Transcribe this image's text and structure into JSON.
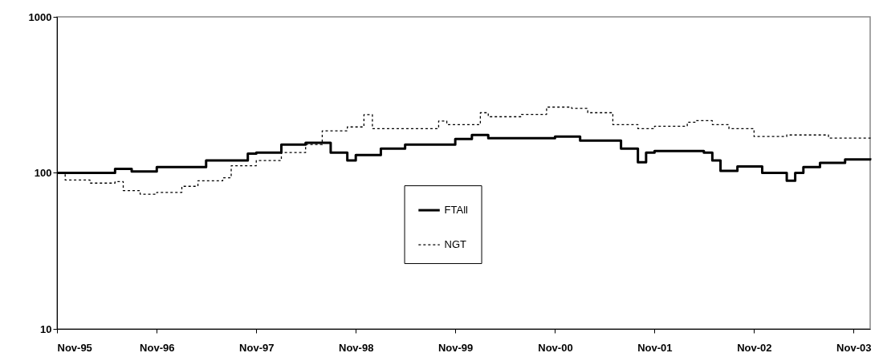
{
  "chart_data": {
    "type": "step",
    "log": true,
    "grid": false,
    "legend": "center",
    "xlim": [
      "1995-11",
      "2004-01"
    ],
    "ylim": [
      10,
      1000
    ],
    "yticks": [
      10,
      100,
      1000
    ],
    "xticks": [
      {
        "value": "1995-11",
        "label": "Nov-95"
      },
      {
        "value": "1996-11",
        "label": "Nov-96"
      },
      {
        "value": "1997-11",
        "label": "Nov-97"
      },
      {
        "value": "1998-11",
        "label": "Nov-98"
      },
      {
        "value": "1999-11",
        "label": "Nov-99"
      },
      {
        "value": "2000-11",
        "label": "Nov-00"
      },
      {
        "value": "2001-11",
        "label": "Nov-01"
      },
      {
        "value": "2002-11",
        "label": "Nov-02"
      },
      {
        "value": "2003-11",
        "label": "Nov-03"
      }
    ],
    "series": [
      {
        "name": "FTAll",
        "color": "#000000",
        "line_style": "solid",
        "x": [
          "1995-11",
          "1996-06",
          "1996-08",
          "1996-11",
          "1997-05",
          "1997-10",
          "1997-11",
          "1998-02",
          "1998-05",
          "1998-08",
          "1998-10",
          "1998-11",
          "1999-02",
          "1999-05",
          "1999-11",
          "2000-01",
          "2000-03",
          "2000-11",
          "2001-02",
          "2001-07",
          "2001-09",
          "2001-10",
          "2001-11",
          "2002-05",
          "2002-06",
          "2002-07",
          "2002-09",
          "2002-12",
          "2003-03",
          "2003-04",
          "2003-05",
          "2003-07",
          "2003-10",
          "2004-01"
        ],
        "values": [
          100,
          106,
          102,
          109,
          120,
          133,
          135,
          152,
          156,
          135,
          120,
          130,
          143,
          152,
          165,
          175,
          167,
          171,
          161,
          143,
          117,
          135,
          138,
          135,
          120,
          103,
          110,
          100,
          89,
          100,
          109,
          116,
          122,
          124
        ]
      },
      {
        "name": "NGT",
        "color": "#000000",
        "line_style": "dashed",
        "x": [
          "1995-11",
          "1995-12",
          "1996-03",
          "1996-06",
          "1996-07",
          "1996-09",
          "1996-11",
          "1997-02",
          "1997-04",
          "1997-07",
          "1997-08",
          "1997-11",
          "1998-02",
          "1998-05",
          "1998-07",
          "1998-10",
          "1998-12",
          "1999-01",
          "1999-06",
          "1999-09",
          "1999-10",
          "2000-02",
          "2000-03",
          "2000-07",
          "2000-10",
          "2001-01",
          "2001-03",
          "2001-06",
          "2001-09",
          "2001-11",
          "2002-03",
          "2002-04",
          "2002-06",
          "2002-08",
          "2002-11",
          "2003-03",
          "2003-08",
          "2004-01"
        ],
        "values": [
          100,
          90,
          86,
          88,
          77,
          73,
          75,
          82,
          89,
          93,
          111,
          120,
          135,
          152,
          186,
          197,
          236,
          192,
          192,
          215,
          204,
          243,
          229,
          237,
          264,
          259,
          243,
          204,
          192,
          199,
          211,
          216,
          204,
          192,
          171,
          175,
          167,
          171
        ]
      }
    ]
  }
}
